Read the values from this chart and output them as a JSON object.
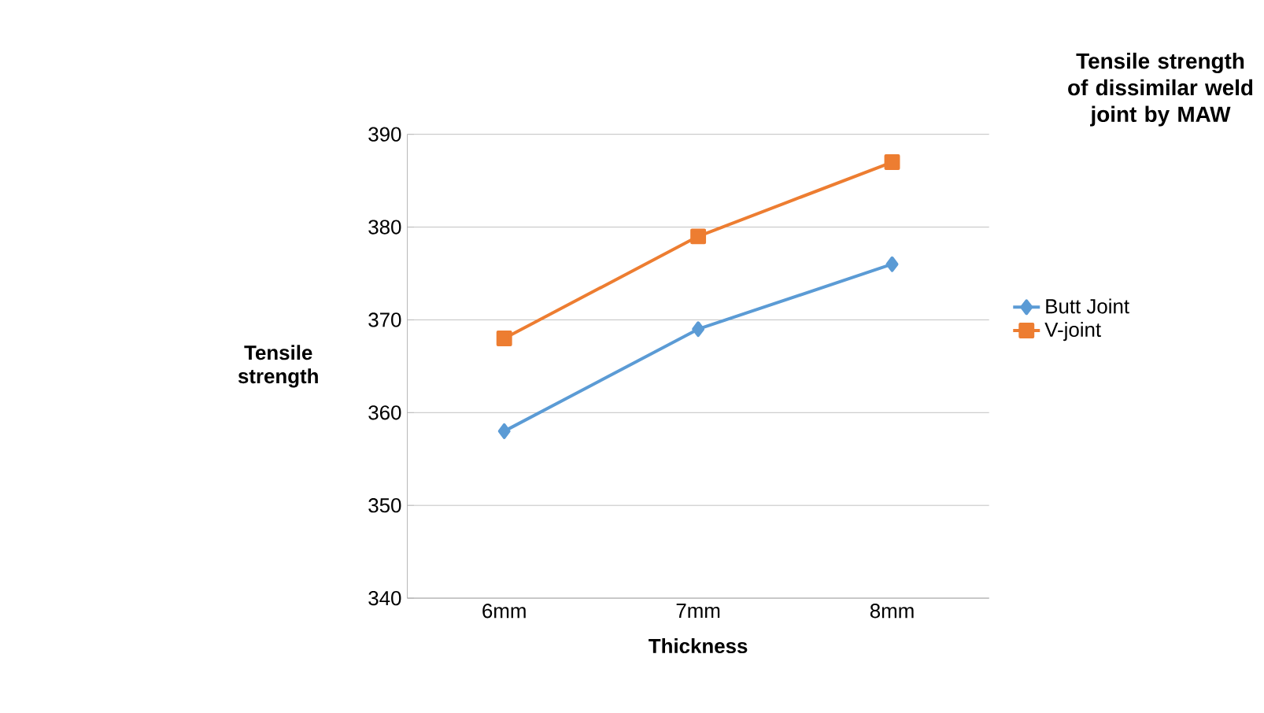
{
  "chart_data": {
    "type": "line",
    "xlabel": "Thickness",
    "ylabel": "Tensile strength",
    "legend_title": "Tensile strength of dissimilar weld joint by MAW",
    "categories": [
      "6mm",
      "7mm",
      "8mm"
    ],
    "series": [
      {
        "name": "Butt Joint",
        "color": "#5b9bd5",
        "marker": "diamond",
        "values": [
          358,
          369,
          376
        ]
      },
      {
        "name": "V-joint",
        "color": "#ed7d31",
        "marker": "square",
        "values": [
          368,
          379,
          387
        ]
      }
    ],
    "ylim": [
      340,
      390
    ],
    "yticks": [
      340,
      350,
      360,
      370,
      380,
      390
    ],
    "grid": "y",
    "legend": "right",
    "line_style": "solid"
  }
}
